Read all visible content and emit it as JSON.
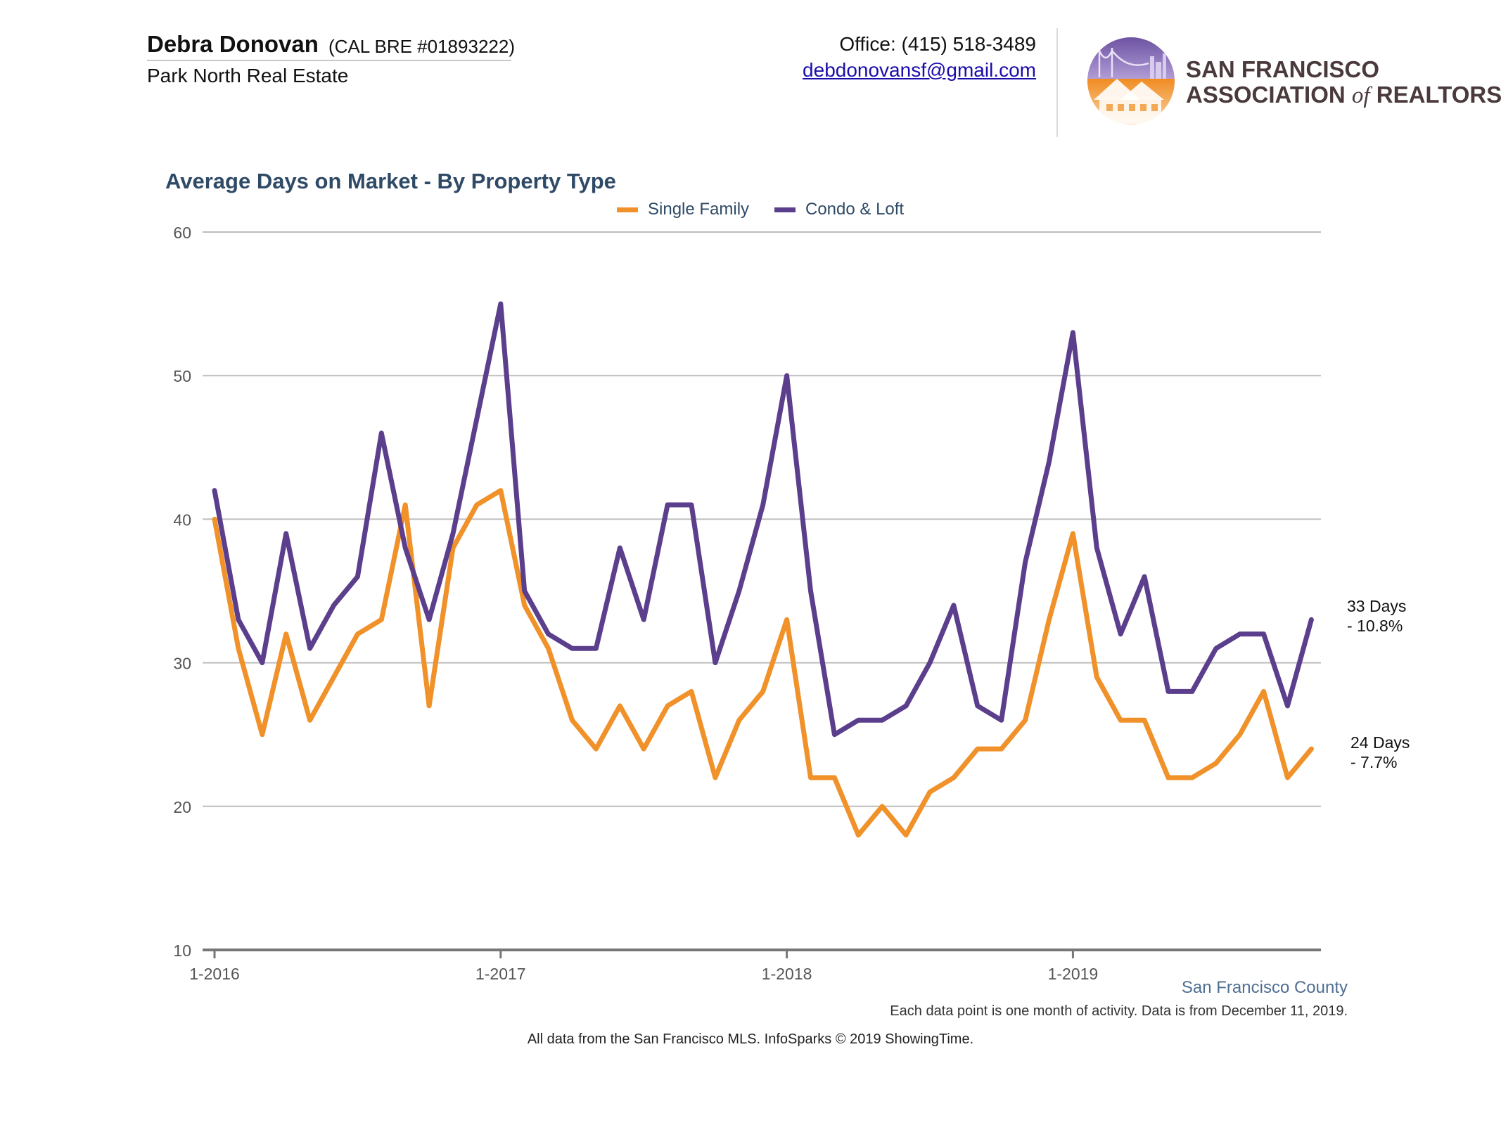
{
  "header": {
    "agent_name": "Debra Donovan",
    "license": "(CAL BRE #01893222)",
    "company": "Park North Real Estate",
    "office": "Office: (415) 518-3489",
    "email": "debdonovansf@gmail.com",
    "logo_line1": "SAN FRANCISCO",
    "logo_line2_a": "ASSOCIATION",
    "logo_line2_of": "of",
    "logo_line2_b": "REALTORS",
    "logo_reg": "®"
  },
  "colors": {
    "single_family": "#f0912a",
    "condo_loft": "#5b3f8c",
    "grid": "#bdbdbd",
    "axis": "#777777",
    "title": "#2f4a66"
  },
  "chart_data": {
    "type": "line",
    "title": "Average Days on Market - By Property Type",
    "xlabel": "",
    "ylabel": "",
    "ylim": [
      10,
      60
    ],
    "yticks": [
      10,
      20,
      30,
      40,
      50,
      60
    ],
    "grid": true,
    "legend_position": "top-center",
    "x_tick_labels": [
      "1-2016",
      "1-2017",
      "1-2018",
      "1-2019"
    ],
    "x_start": "1-2016",
    "x_end": "11-2019",
    "series": [
      {
        "name": "Single Family",
        "values": [
          40,
          31,
          25,
          32,
          26,
          29,
          32,
          33,
          41,
          27,
          38,
          41,
          42,
          34,
          31,
          26,
          24,
          27,
          24,
          27,
          28,
          22,
          26,
          28,
          33,
          22,
          22,
          18,
          20,
          18,
          21,
          22,
          24,
          24,
          26,
          33,
          39,
          29,
          26,
          26,
          22,
          22,
          23,
          25,
          28,
          22,
          24
        ],
        "end_label_line1": "24 Days",
        "end_label_line2": "- 7.7%"
      },
      {
        "name": "Condo & Loft",
        "values": [
          42,
          33,
          30,
          39,
          31,
          34,
          36,
          46,
          38,
          33,
          39,
          47,
          55,
          35,
          32,
          31,
          31,
          38,
          33,
          41,
          41,
          30,
          35,
          41,
          50,
          35,
          25,
          26,
          26,
          27,
          30,
          34,
          27,
          26,
          37,
          44,
          53,
          38,
          32,
          36,
          28,
          28,
          31,
          32,
          32,
          27,
          33
        ],
        "end_label_line1": "33 Days",
        "end_label_line2": "- 10.8%"
      }
    ]
  },
  "footer": {
    "county": "San Francisco County",
    "note": "Each data point is one month of activity. Data is from December 11, 2019.",
    "source": "All data from the San Francisco MLS. InfoSparks © 2019 ShowingTime."
  }
}
